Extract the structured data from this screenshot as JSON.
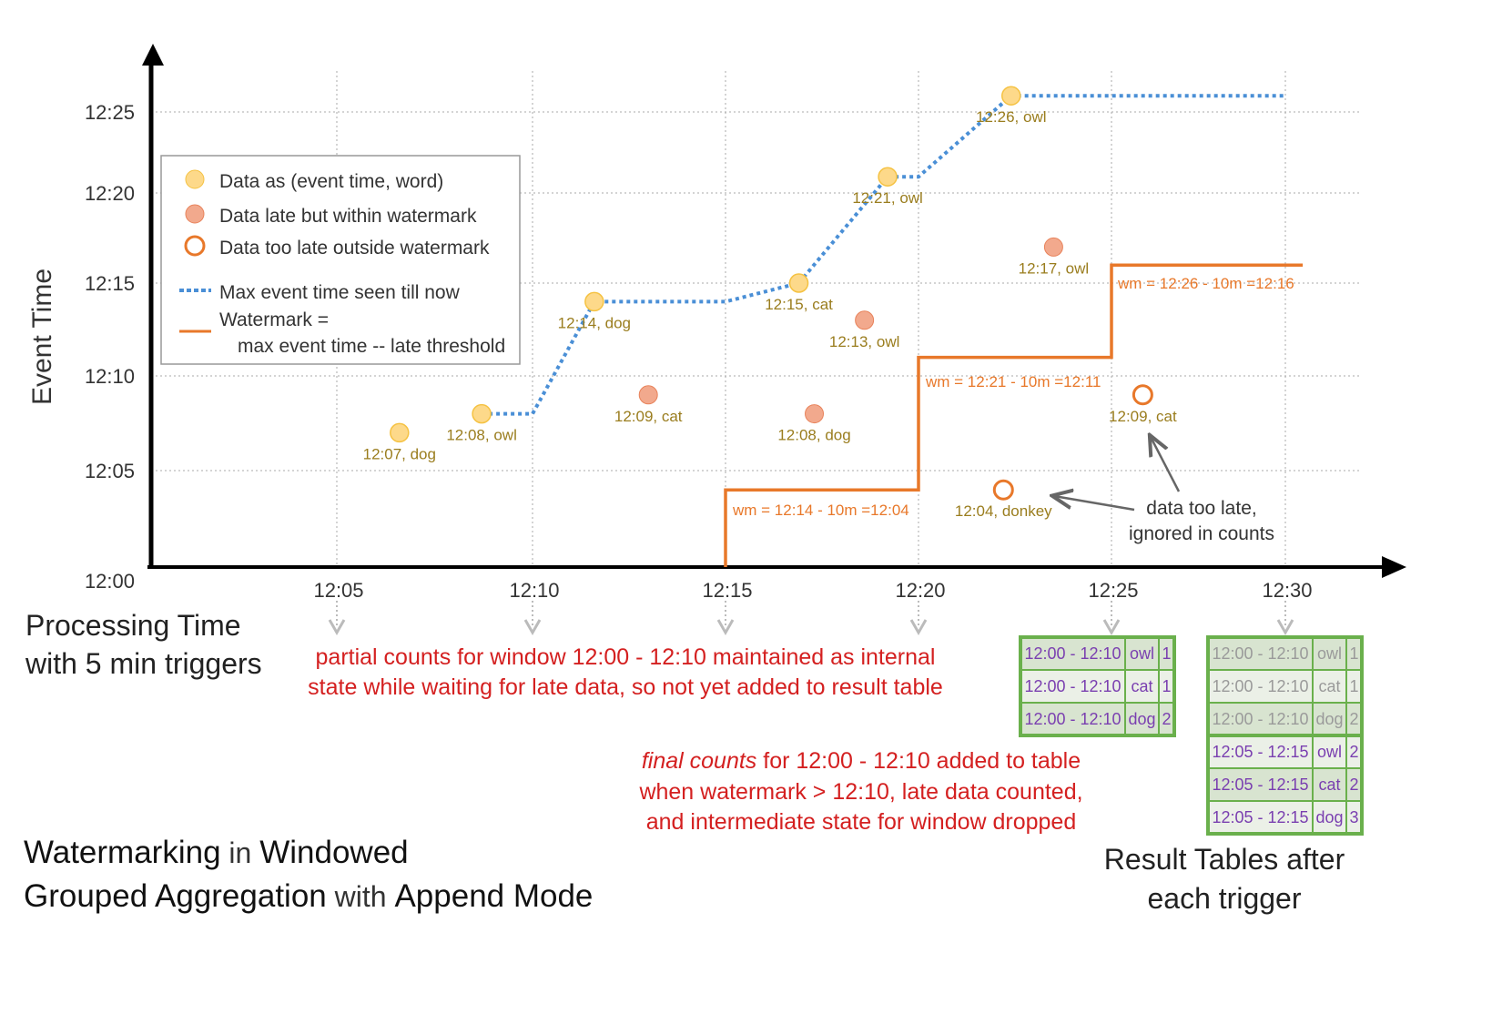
{
  "colors": {
    "on_time": "#fdd98a",
    "on_time_stroke": "#f5c242",
    "late": "#f2a98d",
    "late_stroke": "#e8825a",
    "too_late": "#e8782a",
    "max_line": "#4a8fd6",
    "watermark": "#e8782a",
    "table_border": "#6ab04c",
    "table_fill_dark": "#d8e4d0",
    "table_fill_light": "#ebf0e7",
    "purple": "#7a3fb0",
    "gray": "#9a9a9a",
    "red": "#d42020"
  },
  "axes": {
    "y_label": "Event Time",
    "y_ticks": [
      "12:00",
      "12:05",
      "12:10",
      "12:15",
      "12:20",
      "12:25"
    ],
    "x_ticks": [
      "12:05",
      "12:10",
      "12:15",
      "12:20",
      "12:25",
      "12:30"
    ],
    "x_label_line1": "Processing Time",
    "x_label_line2": "with 5 min triggers"
  },
  "legend": {
    "items": [
      "Data as (event time, word)",
      "Data late but within watermark",
      "Data too late outside watermark",
      "Max event time seen till now",
      "Watermark ="
    ],
    "watermark_line2": "max event time -- late threshold"
  },
  "points": [
    {
      "label": "12:07, dog",
      "proc_min": 6.6,
      "event_min": 7,
      "kind": "on_time"
    },
    {
      "label": "12:08, owl",
      "proc_min": 8.7,
      "event_min": 8,
      "kind": "on_time"
    },
    {
      "label": "12:14, dog",
      "proc_min": 11.6,
      "event_min": 14,
      "kind": "on_time"
    },
    {
      "label": "12:09, cat",
      "proc_min": 13.0,
      "event_min": 9,
      "kind": "late"
    },
    {
      "label": "12:15, cat",
      "proc_min": 16.9,
      "event_min": 15,
      "kind": "on_time"
    },
    {
      "label": "12:08, dog",
      "proc_min": 17.3,
      "event_min": 8,
      "kind": "late"
    },
    {
      "label": "12:13, owl",
      "proc_min": 18.6,
      "event_min": 13,
      "kind": "late"
    },
    {
      "label": "12:21, owl",
      "proc_min": 19.2,
      "event_min": 21,
      "kind": "on_time"
    },
    {
      "label": "12:04, donkey",
      "proc_min": 22.2,
      "event_min": 4,
      "kind": "too_late"
    },
    {
      "label": "12:26, owl",
      "proc_min": 22.4,
      "event_min": 26,
      "kind": "on_time"
    },
    {
      "label": "12:17, owl",
      "proc_min": 23.5,
      "event_min": 17,
      "kind": "late"
    },
    {
      "label": "12:09, cat",
      "proc_min": 25.9,
      "event_min": 9,
      "kind": "too_late"
    }
  ],
  "max_event_line": [
    [
      8.7,
      8
    ],
    [
      10,
      8
    ],
    [
      11.6,
      14
    ],
    [
      15,
      14
    ],
    [
      16.9,
      15
    ],
    [
      19.2,
      21
    ],
    [
      20,
      21
    ],
    [
      22.4,
      26
    ],
    [
      30,
      26
    ]
  ],
  "watermark_line": [
    [
      15,
      0
    ],
    [
      15,
      4
    ],
    [
      20,
      4
    ],
    [
      20,
      11
    ],
    [
      25,
      11
    ],
    [
      25,
      16
    ],
    [
      30.5,
      16
    ]
  ],
  "watermark_labels": [
    "wm = 12:14 - 10m =12:04",
    "wm = 12:21 - 10m =12:11",
    "wm = 12:26 - 10m =12:16"
  ],
  "annotations": {
    "partial_line1": "partial counts for window 12:00 - 12:10 maintained as internal",
    "partial_line2": "state while waiting for late data, so not yet added  to result table",
    "final_em": "final counts",
    "final_line1_rest": " for 12:00 - 12:10 added to table",
    "final_line2": "when watermark > 12:10, late data counted,",
    "final_line3": "and intermediate state for window dropped",
    "too_late_line1": "data too late,",
    "too_late_line2": "ignored in counts"
  },
  "result_tables": [
    {
      "rows": [
        [
          "12:00 - 12:10",
          "owl",
          "1"
        ],
        [
          "12:00 - 12:10",
          "cat",
          "1"
        ],
        [
          "12:00 - 12:10",
          "dog",
          "2"
        ]
      ],
      "stale_rows": 0
    },
    {
      "rows": [
        [
          "12:00 - 12:10",
          "owl",
          "1"
        ],
        [
          "12:00 - 12:10",
          "cat",
          "1"
        ],
        [
          "12:00 - 12:10",
          "dog",
          "2"
        ],
        [
          "12:05 - 12:15",
          "owl",
          "2"
        ],
        [
          "12:05 - 12:15",
          "cat",
          "2"
        ],
        [
          "12:05 - 12:15",
          "dog",
          "3"
        ]
      ],
      "stale_rows": 3
    }
  ],
  "result_caption_line1": "Result Tables after",
  "result_caption_line2": "each trigger",
  "title": {
    "p1": "Watermarking",
    "p2": " in ",
    "p3": "Windowed",
    "p4": "Grouped Aggregation",
    "p5": " with ",
    "p6": "Append Mode"
  }
}
